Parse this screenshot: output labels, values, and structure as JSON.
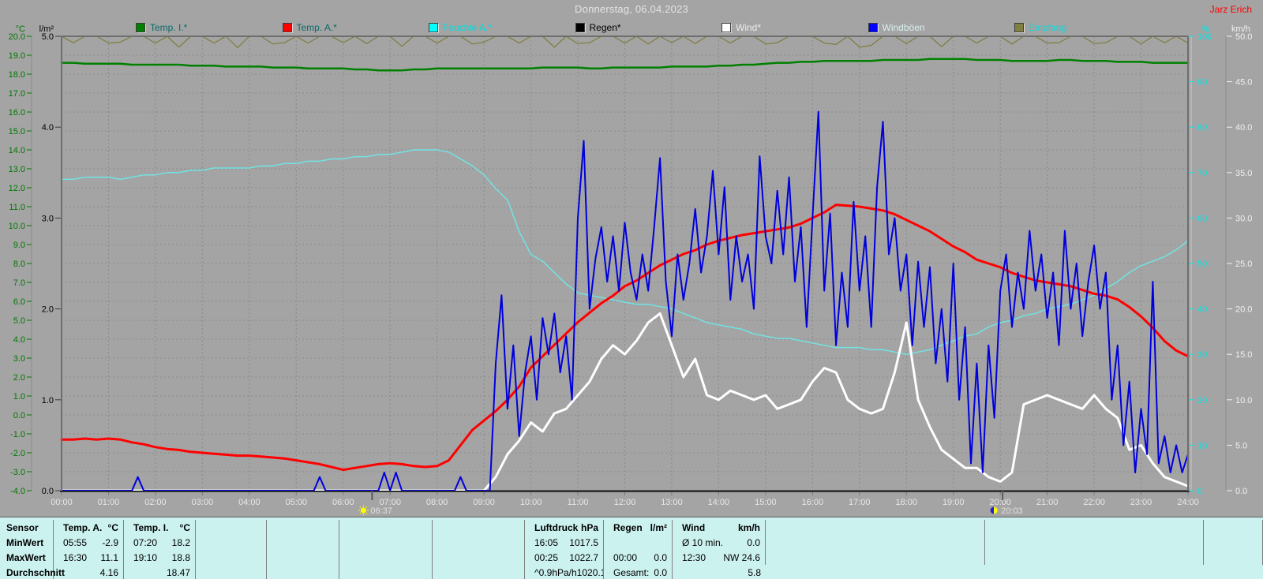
{
  "header": {
    "title": "Donnerstag, 06.04.2023",
    "user": "Jarz Erich"
  },
  "legend": [
    {
      "label": "Temp. I.*",
      "swatch": "#008000",
      "text": "#0a6a6a"
    },
    {
      "label": "Temp. A.*",
      "swatch": "#ff0000",
      "text": "#0a6a6a"
    },
    {
      "label": "Feuchte A.*",
      "swatch": "#00ffff",
      "text": "#00dede"
    },
    {
      "label": "Regen*",
      "swatch": "#000000",
      "text": "#000000"
    },
    {
      "label": "Wind*",
      "swatch": "#ffffff",
      "text": "#ececec"
    },
    {
      "label": "Windböen",
      "swatch": "#0000ff",
      "text": "#d9efef"
    },
    {
      "label": "Empfang",
      "swatch": "#808040",
      "text": "#00dede"
    }
  ],
  "axes": {
    "temp": {
      "unit": "°C",
      "color": "#007800",
      "ticks": [
        "20.0",
        "19.0",
        "18.0",
        "17.0",
        "16.0",
        "15.0",
        "14.0",
        "13.0",
        "12.0",
        "11.0",
        "10.0",
        "9.0",
        "8.0",
        "7.0",
        "6.0",
        "5.0",
        "4.0",
        "3.0",
        "2.0",
        "1.0",
        "0.0",
        "-1.0",
        "-2.0",
        "-3.0",
        "-4.0"
      ]
    },
    "rain": {
      "unit": "l/m²",
      "color": "#000000",
      "ticks": [
        "5.0",
        "4.0",
        "3.0",
        "2.0",
        "1.0",
        "0.0"
      ]
    },
    "humidity": {
      "unit": "%",
      "color": "#00e6e6",
      "ticks": [
        "100",
        "90",
        "80",
        "70",
        "60",
        "50",
        "40",
        "30",
        "20",
        "10",
        "0"
      ]
    },
    "wind": {
      "unit": "km/h",
      "color": "#f0f0f0",
      "ticks": [
        "50.0",
        "45.0",
        "40.0",
        "35.0",
        "30.0",
        "25.0",
        "20.0",
        "15.0",
        "10.0",
        "5.0",
        "0.0"
      ]
    },
    "time": {
      "color": "#e8e8e8",
      "labels": [
        "00:00",
        "01:00",
        "02:00",
        "03:00",
        "04:00",
        "05:00",
        "06:00",
        "07:00",
        "08:00",
        "09:00",
        "10:00",
        "11:00",
        "12:00",
        "13:00",
        "14:00",
        "15:00",
        "16:00",
        "17:00",
        "18:00",
        "19:00",
        "20:00",
        "21:00",
        "22:00",
        "23:00",
        "24:00"
      ]
    }
  },
  "markers": {
    "sunrise": {
      "time": "06:37",
      "hour": 6.617
    },
    "sunset": {
      "time": "20:03",
      "hour": 20.05
    }
  },
  "chart_data": {
    "type": "line",
    "title": "Donnerstag, 06.04.2023",
    "x_unit": "hours",
    "x_range": [
      0,
      24
    ],
    "grid": {
      "horizontal_step_degC": 1,
      "vertical_step_hours": 1
    },
    "axes": {
      "degC": [
        -4,
        20
      ],
      "lm2": [
        0,
        5
      ],
      "pct": [
        0,
        100
      ],
      "kmh": [
        0,
        50
      ]
    },
    "series": [
      {
        "name": "Regen",
        "axis": "lm2",
        "color": "#000000",
        "width": 1,
        "step_min": 720,
        "values": [
          0,
          0,
          0
        ]
      },
      {
        "name": "Empfang",
        "axis": "pct",
        "color": "#7e7c3c",
        "width": 1.2,
        "step_min": 15,
        "values": [
          100,
          98.6,
          100,
          100,
          98.5,
          98.7,
          100,
          100,
          98.5,
          100,
          97.6,
          100,
          100,
          98.5,
          100,
          97.5,
          100,
          100,
          98.3,
          98.6,
          100,
          98.5,
          100,
          100,
          98.6,
          100,
          98.4,
          100,
          100,
          97.8,
          100,
          100,
          98.5,
          100,
          100,
          98.3,
          98.7,
          100,
          100,
          98.5,
          100,
          100,
          97.6,
          100,
          98.4,
          98.6,
          100,
          100,
          98.5,
          100,
          98.3,
          100,
          98.6,
          100,
          98.4,
          100,
          100,
          98.5,
          100,
          100,
          98.3,
          98.6,
          100,
          100,
          100,
          98.5,
          98.2,
          100,
          97.6,
          98.0,
          100,
          100,
          98.4,
          100,
          100,
          97.7,
          100,
          100,
          98.5,
          100,
          100,
          98.3,
          100,
          100,
          98.5,
          98.6,
          100,
          100,
          98.4,
          98.6,
          100,
          100,
          98.3,
          100,
          98.6,
          100,
          98.5
        ]
      },
      {
        "name": "Temp. I.",
        "axis": "degC",
        "color": "#008000",
        "width": 2.5,
        "step_min": 15,
        "values": [
          18.6,
          18.6,
          18.55,
          18.55,
          18.55,
          18.55,
          18.5,
          18.5,
          18.5,
          18.5,
          18.5,
          18.45,
          18.45,
          18.45,
          18.4,
          18.4,
          18.4,
          18.4,
          18.35,
          18.35,
          18.35,
          18.3,
          18.3,
          18.3,
          18.3,
          18.25,
          18.25,
          18.2,
          18.2,
          18.2,
          18.25,
          18.25,
          18.3,
          18.3,
          18.3,
          18.3,
          18.3,
          18.3,
          18.3,
          18.3,
          18.3,
          18.35,
          18.35,
          18.35,
          18.35,
          18.3,
          18.3,
          18.35,
          18.35,
          18.35,
          18.35,
          18.35,
          18.4,
          18.4,
          18.4,
          18.4,
          18.45,
          18.45,
          18.5,
          18.5,
          18.55,
          18.6,
          18.6,
          18.65,
          18.65,
          18.7,
          18.7,
          18.7,
          18.7,
          18.7,
          18.75,
          18.75,
          18.75,
          18.75,
          18.8,
          18.8,
          18.8,
          18.8,
          18.75,
          18.75,
          18.75,
          18.7,
          18.7,
          18.7,
          18.7,
          18.75,
          18.75,
          18.7,
          18.7,
          18.7,
          18.65,
          18.65,
          18.65,
          18.6,
          18.6,
          18.6,
          18.6
        ]
      },
      {
        "name": "Feuchte A.",
        "axis": "pct",
        "color": "#72e3e3",
        "width": 1.5,
        "step_min": 15,
        "values": [
          68.5,
          68.5,
          69,
          69,
          69,
          68.5,
          69,
          69.5,
          69.5,
          70,
          70,
          70.5,
          70.5,
          71,
          71,
          71,
          71,
          71.5,
          71.5,
          72,
          72,
          72.5,
          72.5,
          73,
          73,
          73.5,
          73.5,
          74,
          74,
          74.5,
          75,
          75,
          75,
          74.5,
          73,
          71.5,
          69.5,
          66.5,
          64,
          57,
          52,
          50.5,
          48,
          45.5,
          43.5,
          43,
          42.5,
          42,
          41.5,
          41,
          41,
          40.5,
          40,
          39,
          38,
          37,
          36.5,
          36,
          35.5,
          34.5,
          34,
          33.5,
          33.5,
          33,
          32.5,
          32,
          31.5,
          31.5,
          31.5,
          31,
          31,
          30.5,
          30,
          30.5,
          31,
          32,
          33,
          34,
          34.5,
          36,
          37,
          37.5,
          38.5,
          39,
          40,
          40.5,
          41,
          42,
          43,
          44.5,
          46,
          48,
          49.5,
          50.5,
          51.5,
          53,
          55
        ]
      },
      {
        "name": "Temp. A.",
        "axis": "degC",
        "color": "#ff0000",
        "width": 3,
        "step_min": 15,
        "values": [
          -1.3,
          -1.3,
          -1.25,
          -1.3,
          -1.25,
          -1.3,
          -1.45,
          -1.55,
          -1.7,
          -1.8,
          -1.85,
          -1.95,
          -2.0,
          -2.05,
          -2.1,
          -2.15,
          -2.15,
          -2.2,
          -2.25,
          -2.3,
          -2.4,
          -2.5,
          -2.6,
          -2.75,
          -2.9,
          -2.8,
          -2.7,
          -2.6,
          -2.55,
          -2.6,
          -2.7,
          -2.75,
          -2.7,
          -2.4,
          -1.6,
          -0.8,
          -0.3,
          0.2,
          0.8,
          1.5,
          2.5,
          3.1,
          3.7,
          4.3,
          4.9,
          5.4,
          5.9,
          6.3,
          6.8,
          7.1,
          7.5,
          7.9,
          8.2,
          8.5,
          8.7,
          9.0,
          9.2,
          9.35,
          9.5,
          9.6,
          9.7,
          9.8,
          9.9,
          10.1,
          10.4,
          10.7,
          11.1,
          11.05,
          11.0,
          10.9,
          10.8,
          10.6,
          10.3,
          10.0,
          9.7,
          9.3,
          8.9,
          8.6,
          8.2,
          8.0,
          7.8,
          7.5,
          7.3,
          7.1,
          7.0,
          6.9,
          6.8,
          6.6,
          6.4,
          6.3,
          6.1,
          5.7,
          5.2,
          4.6,
          3.9,
          3.4,
          3.1
        ]
      },
      {
        "name": "Wind",
        "axis": "kmh",
        "color": "#ffffff",
        "width": 3,
        "step_min": 15,
        "values": [
          0,
          0,
          0,
          0,
          0,
          0,
          0,
          0,
          0,
          0,
          0,
          0,
          0,
          0,
          0,
          0,
          0,
          0,
          0,
          0,
          0,
          0,
          0,
          0,
          0,
          0,
          0,
          0,
          0,
          0,
          0,
          0,
          0,
          0,
          0,
          0,
          0,
          1.5,
          4,
          5.5,
          7.5,
          6.5,
          8.5,
          9,
          10.5,
          12,
          14.5,
          16,
          15,
          16.5,
          18.5,
          19.5,
          16,
          12.5,
          14.5,
          10.5,
          10,
          11,
          10.5,
          10,
          10.5,
          9,
          9.5,
          10,
          12,
          13.5,
          13,
          10,
          9,
          8.5,
          9,
          13,
          18.5,
          10,
          7,
          4.5,
          3.5,
          2.5,
          2.5,
          1.5,
          1,
          2,
          9.5,
          10,
          10.5,
          10,
          9.5,
          9,
          10.5,
          9,
          8,
          4.5,
          5,
          3,
          1.5,
          1,
          0.5
        ]
      },
      {
        "name": "Windböen",
        "axis": "kmh",
        "color": "#0000dd",
        "width": 2,
        "step_min": 7.5,
        "values": [
          0,
          0,
          0,
          0,
          0,
          0,
          0,
          0,
          0,
          0,
          0,
          0,
          0,
          1.5,
          0,
          0,
          0,
          0,
          0,
          0,
          0,
          0,
          0,
          0,
          0,
          0,
          0,
          0,
          0,
          0,
          0,
          0,
          0,
          0,
          0,
          0,
          0,
          0,
          0,
          0,
          0,
          0,
          0,
          0,
          1.5,
          0,
          0,
          0,
          0,
          0,
          0,
          0,
          0,
          0,
          0,
          2,
          0,
          2,
          0,
          0,
          0,
          0,
          0,
          0,
          0,
          0,
          0,
          0,
          1.5,
          0,
          0,
          0,
          0,
          0,
          14,
          21.5,
          9,
          16,
          6,
          13,
          17,
          10,
          19,
          15,
          19.5,
          13,
          17,
          10,
          30,
          38.5,
          20,
          25.5,
          29,
          23,
          28,
          22,
          29.5,
          24,
          21,
          26,
          22,
          29,
          36.6,
          23,
          17,
          26,
          21,
          25,
          31,
          24,
          28,
          35.2,
          26,
          33.4,
          21,
          28,
          23,
          26,
          20,
          36.8,
          28,
          25,
          33,
          26,
          34.5,
          23,
          29,
          18,
          30,
          41.7,
          22,
          30.5,
          16,
          24,
          18,
          31.8,
          22,
          28,
          18,
          33.4,
          40.6,
          26,
          30,
          22,
          26,
          16,
          25.2,
          18,
          24.6,
          14,
          20,
          12,
          25,
          10,
          18,
          3,
          14,
          2,
          16,
          8,
          22,
          26,
          18,
          24,
          20,
          28.6,
          22,
          26,
          19,
          24,
          16,
          28.6,
          20,
          25,
          17,
          23,
          27,
          20,
          24,
          10,
          16,
          5,
          12,
          2,
          9,
          4,
          23,
          3,
          6,
          2,
          5,
          2,
          4
        ]
      }
    ]
  },
  "table": {
    "row_labels": [
      "Sensor",
      "MinWert",
      "MaxWert",
      "Durchschnitt"
    ],
    "columns": [
      {
        "header": "Temp. A.",
        "unit": "°C",
        "rows": [
          [
            "05:55",
            "-2.9"
          ],
          [
            "16:30",
            "11.1"
          ],
          [
            "",
            "4.16"
          ]
        ]
      },
      {
        "header": "Temp. I.",
        "unit": "°C",
        "rows": [
          [
            "07:20",
            "18.2"
          ],
          [
            "19:10",
            "18.8"
          ],
          [
            "",
            "18.47"
          ]
        ]
      },
      {
        "header": "",
        "unit": "",
        "rows": [
          [
            "",
            ""
          ],
          [
            "",
            ""
          ],
          [
            "",
            ""
          ]
        ]
      },
      {
        "header": "",
        "unit": "",
        "rows": [
          [
            "",
            ""
          ],
          [
            "",
            ""
          ],
          [
            "",
            ""
          ]
        ]
      },
      {
        "header": "",
        "unit": "",
        "rows": [
          [
            "",
            ""
          ],
          [
            "",
            ""
          ],
          [
            "",
            ""
          ]
        ]
      },
      {
        "header": "",
        "unit": "",
        "rows": [
          [
            "",
            ""
          ],
          [
            "",
            ""
          ],
          [
            "",
            ""
          ]
        ]
      },
      {
        "header": "Luftdruck",
        "unit": "hPa",
        "rows": [
          [
            "16:05",
            "1017.5"
          ],
          [
            "00:25",
            "1022.7"
          ],
          [
            "^0.9hPa/h",
            "1020.1"
          ]
        ]
      },
      {
        "header": "Regen",
        "unit": "l/m²",
        "rows": [
          [
            "",
            ""
          ],
          [
            "00:00",
            "0.0"
          ],
          [
            "Gesamt:",
            "0.0"
          ]
        ]
      },
      {
        "header": "Wind",
        "unit": "km/h",
        "rows": [
          [
            "Ø 10 min.",
            "0.0"
          ],
          [
            "12:30",
            "NW 24.6"
          ],
          [
            "",
            "5.8"
          ]
        ]
      },
      {
        "header": "",
        "unit": "",
        "rows": [
          [
            "",
            ""
          ],
          [
            "",
            ""
          ],
          [
            "",
            ""
          ]
        ]
      },
      {
        "header": "",
        "unit": "",
        "rows": [
          [
            "",
            ""
          ],
          [
            "",
            ""
          ],
          [
            "",
            ""
          ]
        ]
      },
      {
        "header": "",
        "unit": "",
        "rows": [
          [
            "",
            ""
          ],
          [
            "",
            ""
          ],
          [
            "",
            ""
          ]
        ]
      }
    ]
  }
}
